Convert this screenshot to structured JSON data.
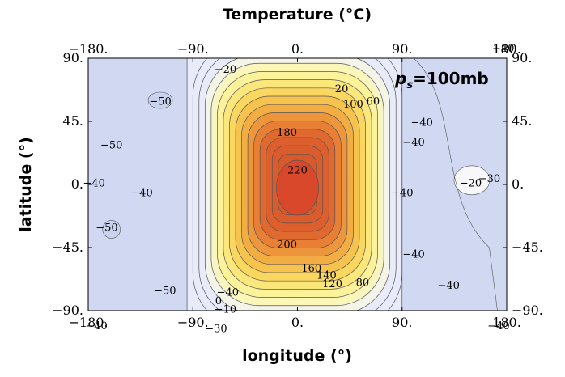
{
  "chart_data": {
    "type": "heatmap",
    "title": "Temperature (°C)",
    "xlabel": "longitude (°)",
    "ylabel": "latitude (°)",
    "xlim": [
      -180,
      180
    ],
    "ylim": [
      -90,
      90
    ],
    "x_ticks": [
      "−180.",
      "−90.",
      "0.",
      "90.",
      "180."
    ],
    "y_ticks": [
      "90.",
      "45.",
      "0.",
      "−45.",
      "−90."
    ],
    "annotation": {
      "main": "p",
      "sub": "s",
      "rest": "=100mb"
    },
    "colors": {
      "cold": "#d0d8f2",
      "cool": "#e8ecfa",
      "neutral": "#f8f8fa",
      "warm": "#fbf49a",
      "hot": "#f3a53d",
      "hottest": "#d9482a",
      "contour_line": "#555555"
    },
    "hot_spot": {
      "center_lon": 0,
      "center_lat": 0
    },
    "contour_levels": [
      -50,
      -40,
      -30,
      -20,
      -10,
      0,
      20,
      40,
      60,
      80,
      100,
      120,
      140,
      160,
      180,
      200,
      220
    ],
    "contour_labels": [
      {
        "text": "−20",
        "lon": -62,
        "lat": 82
      },
      {
        "text": "20",
        "lon": 38,
        "lat": 68
      },
      {
        "text": "100",
        "lon": 48,
        "lat": 57
      },
      {
        "text": "60",
        "lon": 65,
        "lat": 59
      },
      {
        "text": "180",
        "lon": -9,
        "lat": 37
      },
      {
        "text": "220",
        "lon": 0,
        "lat": 10
      },
      {
        "text": "200",
        "lon": -9,
        "lat": -43
      },
      {
        "text": "160",
        "lon": 12,
        "lat": -60
      },
      {
        "text": "140",
        "lon": 25,
        "lat": -65
      },
      {
        "text": "120",
        "lon": 30,
        "lat": -71
      },
      {
        "text": "80",
        "lon": 56,
        "lat": -70
      },
      {
        "text": "−40",
        "lon": -60,
        "lat": -77
      },
      {
        "text": "0",
        "lon": -68,
        "lat": -83
      },
      {
        "text": "−10",
        "lon": -62,
        "lat": -89
      },
      {
        "text": "−30",
        "lon": -70,
        "lat": -103
      },
      {
        "text": "−50",
        "lon": -118,
        "lat": 59
      },
      {
        "text": "−50",
        "lon": -160,
        "lat": 28
      },
      {
        "text": "−40",
        "lon": -175,
        "lat": 1
      },
      {
        "text": "−40",
        "lon": -134,
        "lat": -6
      },
      {
        "text": "−50",
        "lon": -164,
        "lat": -31
      },
      {
        "text": "−50",
        "lon": -114,
        "lat": -76
      },
      {
        "text": "−40",
        "lon": -173,
        "lat": -101
      },
      {
        "text": "−40",
        "lon": 107,
        "lat": 44
      },
      {
        "text": "−40",
        "lon": 100,
        "lat": 30
      },
      {
        "text": "−40",
        "lon": 90,
        "lat": -6
      },
      {
        "text": "−20",
        "lon": 149,
        "lat": 1
      },
      {
        "text": "−30",
        "lon": 165,
        "lat": 4
      },
      {
        "text": "−40",
        "lon": 100,
        "lat": -50
      },
      {
        "text": "−40",
        "lon": 130,
        "lat": -72
      },
      {
        "text": "−40",
        "lon": 177,
        "lat": 97
      },
      {
        "text": "−40",
        "lon": 173,
        "lat": -101
      }
    ]
  }
}
